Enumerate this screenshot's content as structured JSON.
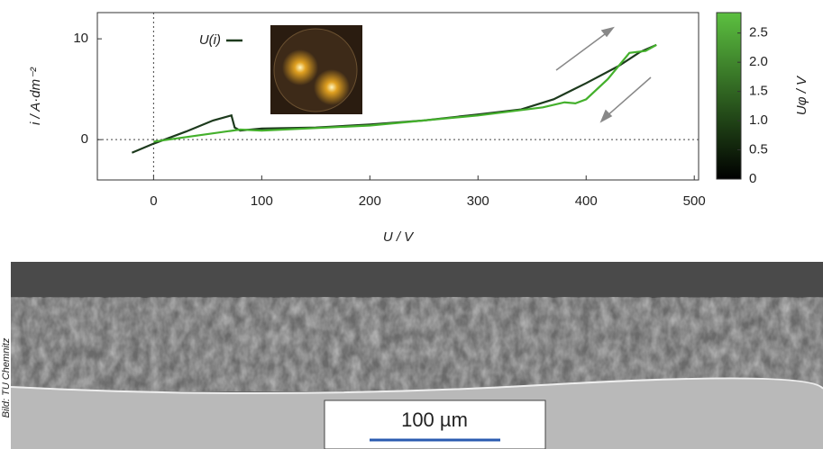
{
  "chart_data": {
    "type": "line",
    "xlabel": "U / V",
    "ylabel": "i / A·dm⁻²",
    "xlim": [
      -52,
      504
    ],
    "ylim": [
      -4,
      12.6
    ],
    "xticks": [
      0,
      100,
      200,
      300,
      400,
      500
    ],
    "yticks": [
      0,
      10
    ],
    "series": [
      {
        "name": "U(i)",
        "color": "#1d3a1d",
        "x": [
          -20,
          0,
          30,
          55,
          72,
          75,
          80,
          100,
          150,
          200,
          250,
          300,
          340,
          370,
          400,
          430,
          450,
          465
        ],
        "values": [
          -1.3,
          -0.4,
          0.8,
          1.9,
          2.4,
          1.2,
          0.9,
          1.1,
          1.2,
          1.5,
          1.9,
          2.5,
          3.0,
          4.0,
          5.6,
          7.3,
          8.7,
          9.4
        ]
      },
      {
        "color": "#44b02c",
        "x": [
          465,
          455,
          440,
          420,
          400,
          390,
          380,
          360,
          300,
          200,
          100,
          80,
          40,
          0
        ],
        "values": [
          9.4,
          8.8,
          8.6,
          6.0,
          4.0,
          3.6,
          3.7,
          3.2,
          2.4,
          1.4,
          0.9,
          1.0,
          0.4,
          -0.2
        ]
      }
    ],
    "colorbar": {
      "label": "Uφ / V",
      "lim": [
        0,
        2.85
      ],
      "ticks": [
        0,
        0.5,
        {
          "value": 1,
          "label": "1.0"
        },
        1.5,
        {
          "value": 2,
          "label": "2.0"
        },
        2.5
      ],
      "colors": [
        "#000000",
        "#5cc040"
      ]
    }
  },
  "image": {
    "scale_bar": "100 µm",
    "credit": "Bild: TU Chemnitz"
  }
}
